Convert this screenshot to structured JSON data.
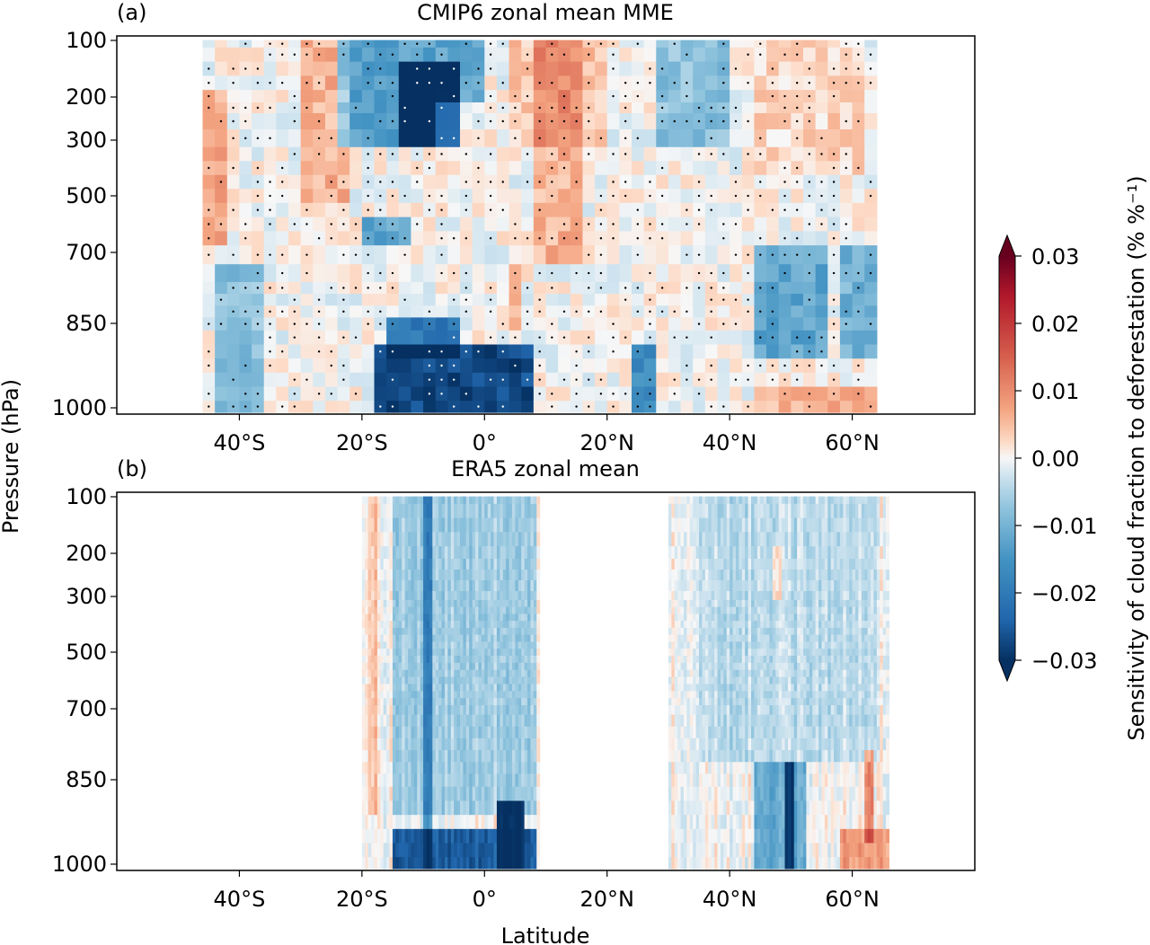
{
  "figure": {
    "ylabel": "Pressure (hPa)",
    "xlabel": "Latitude",
    "colorbar": {
      "label": "Sensitivity of cloud fraction to deforestation (% %⁻¹)",
      "ticks": [
        "0.03",
        "0.02",
        "0.01",
        "0.00",
        "−0.01",
        "−0.02",
        "−0.03"
      ],
      "range": [
        -0.03,
        0.03
      ],
      "cmap": "RdBu_r",
      "low_color": "#053061",
      "mid_color": "#f7f7f7",
      "high_color": "#67001f"
    }
  },
  "chart_data": [
    {
      "type": "heatmap",
      "panel": "(a)",
      "title": "CMIP6 zonal mean MME",
      "x_range": [
        -60,
        80
      ],
      "x_ticks": [
        -40,
        -20,
        0,
        20,
        40,
        60
      ],
      "x_tick_labels": [
        "40°S",
        "20°S",
        "0°",
        "20°N",
        "40°N",
        "60°N"
      ],
      "y_ticks": [
        100,
        200,
        300,
        500,
        700,
        850,
        1000
      ],
      "y_tick_labels": [
        "100",
        "200",
        "300",
        "500",
        "700",
        "850",
        "1000"
      ],
      "data_x_range": [
        -46,
        64
      ],
      "stippling": "significant grid points",
      "features": [
        {
          "lat": [
            -24,
            -8
          ],
          "p": [
            100,
            300
          ],
          "value": -0.013
        },
        {
          "lat": [
            -14,
            -4
          ],
          "p": [
            150,
            300
          ],
          "value": -0.02
        },
        {
          "lat": [
            -8,
            0
          ],
          "p": [
            100,
            200
          ],
          "value": -0.012
        },
        {
          "lat": [
            -18,
            8
          ],
          "p": [
            900,
            1000
          ],
          "value": -0.027
        },
        {
          "lat": [
            -16,
            -4
          ],
          "p": [
            850,
            900
          ],
          "value": -0.02
        },
        {
          "lat": [
            -20,
            -12
          ],
          "p": [
            600,
            650
          ],
          "value": -0.012
        },
        {
          "lat": [
            -46,
            -42
          ],
          "p": [
            200,
            650
          ],
          "value": 0.007
        },
        {
          "lat": [
            -30,
            -22
          ],
          "p": [
            100,
            500
          ],
          "value": 0.006
        },
        {
          "lat": [
            8,
            16
          ],
          "p": [
            100,
            700
          ],
          "value": 0.006
        },
        {
          "lat": [
            4,
            20
          ],
          "p": [
            100,
            300
          ],
          "value": 0.004
        },
        {
          "lat": [
            4,
            6
          ],
          "p": [
            750,
            850
          ],
          "value": 0.006
        },
        {
          "lat": [
            24,
            28
          ],
          "p": [
            900,
            1000
          ],
          "value": -0.016
        },
        {
          "lat": [
            28,
            40
          ],
          "p": [
            100,
            300
          ],
          "value": -0.008
        },
        {
          "lat": [
            44,
            56
          ],
          "p": [
            700,
            900
          ],
          "value": -0.012
        },
        {
          "lat": [
            58,
            64
          ],
          "p": [
            700,
            900
          ],
          "value": -0.01
        },
        {
          "lat": [
            44,
            64
          ],
          "p": [
            960,
            1000
          ],
          "value": 0.006
        },
        {
          "lat": [
            -44,
            -36
          ],
          "p": [
            750,
            1000
          ],
          "value": -0.008
        },
        {
          "lat": [
            44,
            62
          ],
          "p": [
            100,
            400
          ],
          "value": 0.003
        }
      ]
    },
    {
      "type": "heatmap",
      "panel": "(b)",
      "title": "ERA5 zonal mean",
      "x_range": [
        -60,
        80
      ],
      "x_ticks": [
        -40,
        -20,
        0,
        20,
        40,
        60
      ],
      "x_tick_labels": [
        "40°S",
        "20°S",
        "0°",
        "20°N",
        "40°N",
        "60°N"
      ],
      "y_ticks": [
        100,
        200,
        300,
        500,
        700,
        850,
        1000
      ],
      "y_tick_labels": [
        "100",
        "200",
        "300",
        "500",
        "700",
        "850",
        "1000"
      ],
      "data_x_bands": [
        [
          -20,
          9
        ],
        [
          30,
          66
        ]
      ],
      "features": [
        {
          "lat": [
            -15,
            8
          ],
          "p": [
            930,
            1000
          ],
          "value": -0.025
        },
        {
          "lat": [
            2,
            6
          ],
          "p": [
            880,
            1000
          ],
          "value": -0.03
        },
        {
          "lat": [
            -15,
            8
          ],
          "p": [
            100,
            900
          ],
          "value": -0.006
        },
        {
          "lat": [
            -10,
            -9
          ],
          "p": [
            100,
            1000
          ],
          "value": -0.014
        },
        {
          "lat": [
            -19,
            -18
          ],
          "p": [
            100,
            900
          ],
          "value": 0.004
        },
        {
          "lat": [
            44,
            52
          ],
          "p": [
            820,
            1000
          ],
          "value": -0.012
        },
        {
          "lat": [
            49,
            50
          ],
          "p": [
            820,
            1000
          ],
          "value": -0.028
        },
        {
          "lat": [
            58,
            66
          ],
          "p": [
            950,
            1000
          ],
          "value": 0.008
        },
        {
          "lat": [
            47,
            48
          ],
          "p": [
            200,
            300
          ],
          "value": 0.006
        },
        {
          "lat": [
            35,
            64
          ],
          "p": [
            100,
            800
          ],
          "value": -0.004
        },
        {
          "lat": [
            62,
            63
          ],
          "p": [
            800,
            950
          ],
          "value": 0.01
        }
      ]
    }
  ]
}
